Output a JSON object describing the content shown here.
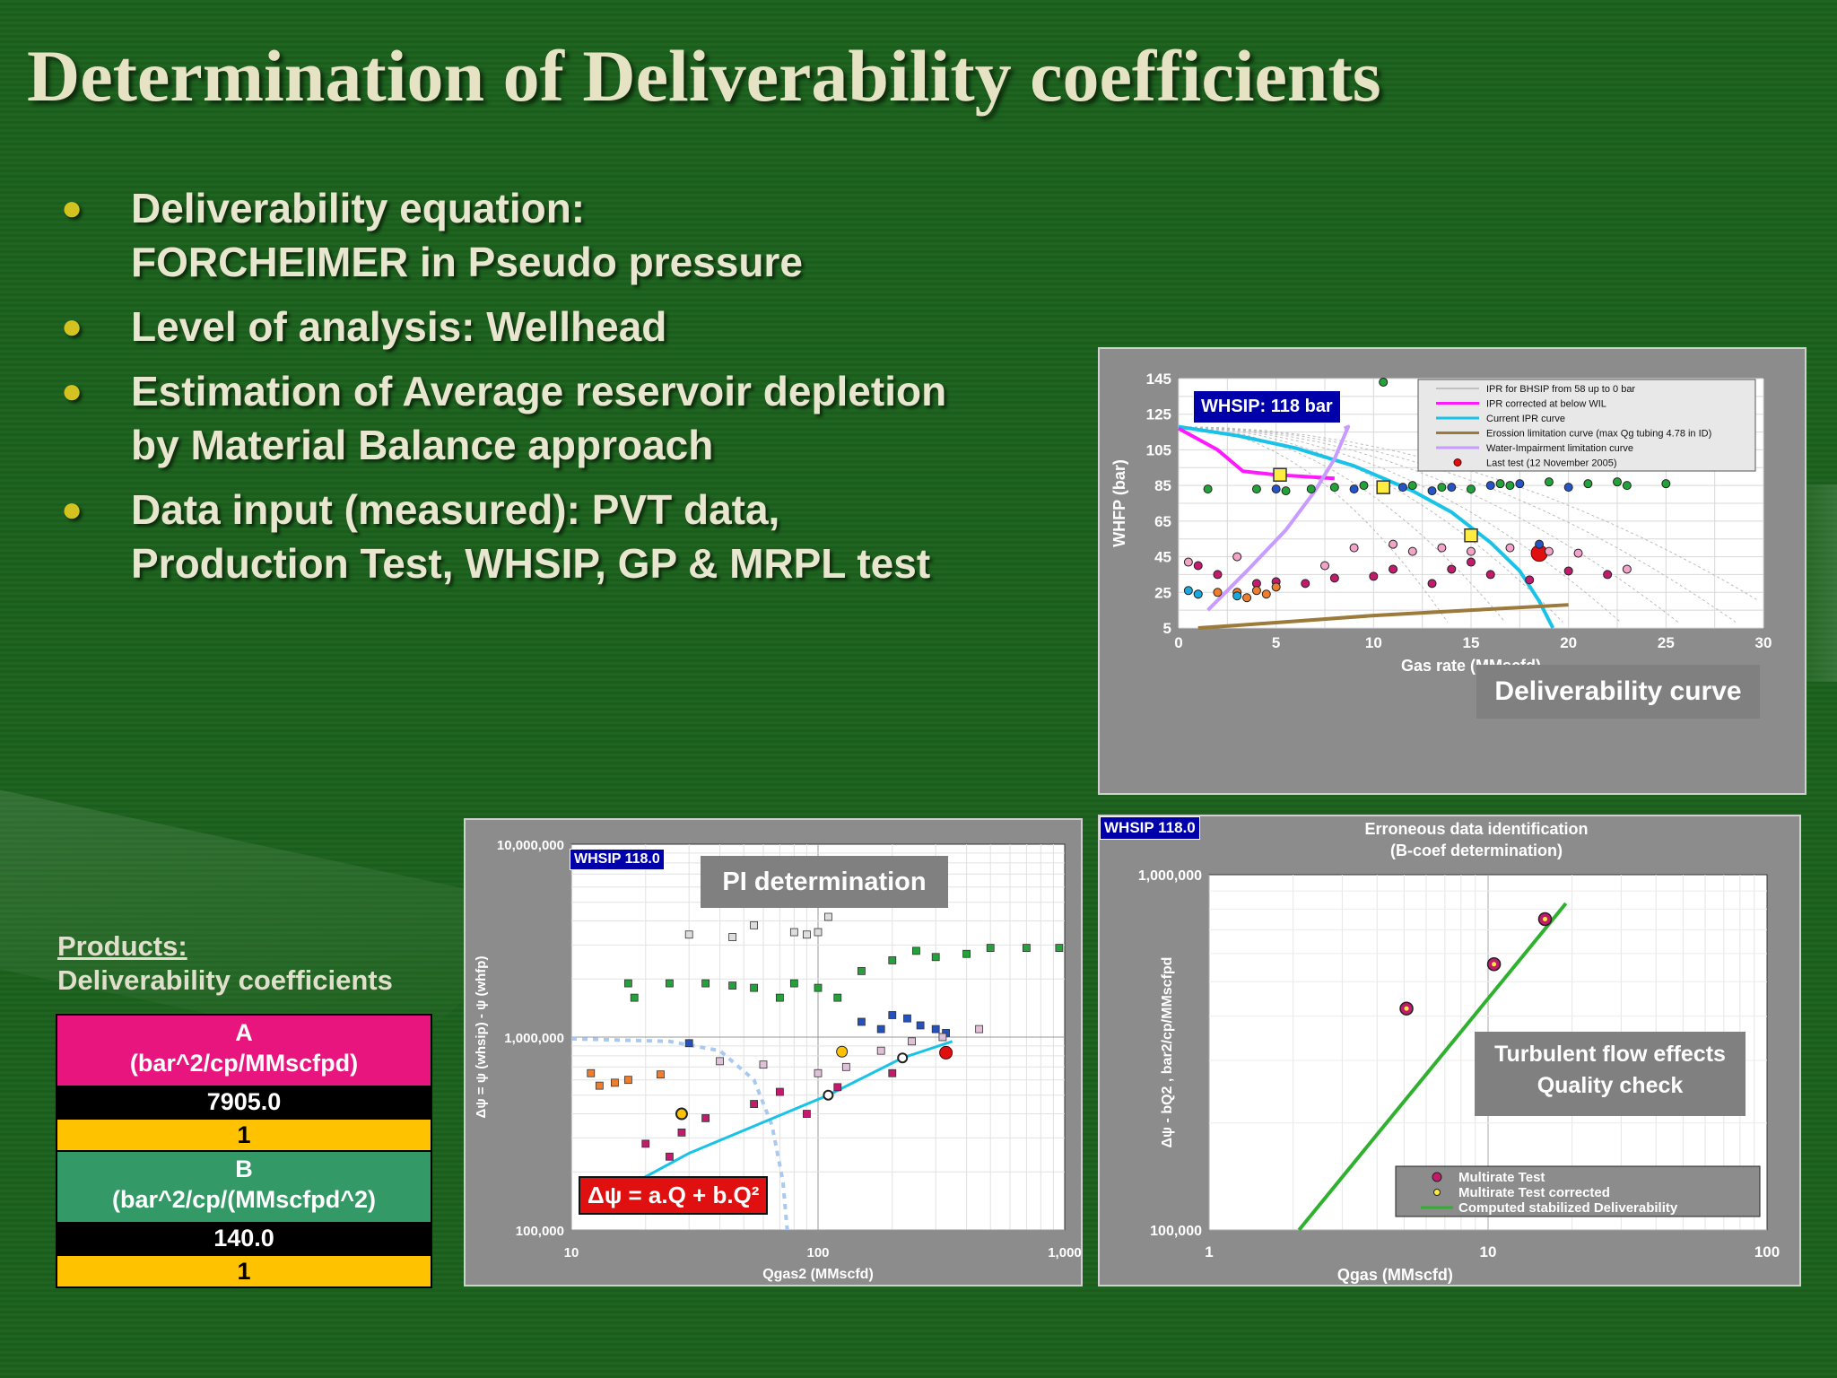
{
  "title": "Determination of Deliverability coefficients",
  "bullets": [
    "Deliverability equation:\nFORCHEIMER in Pseudo pressure",
    "Level of analysis: Wellhead",
    "Estimation of Average reservoir depletion\nby Material Balance approach",
    "Data input (measured): PVT data,\nProduction Test, WHSIP, GP & MRPL test"
  ],
  "products": {
    "heading": "Products:",
    "subheading": "Deliverability coefficients"
  },
  "coefficients": {
    "a_label": "A",
    "a_unit": "(bar^2/cp/MMscfpd)",
    "a_value": "7905.0",
    "a_flag": "1",
    "b_label": "B",
    "b_unit": "(bar^2/cp/(MMscfpd^2)",
    "b_value": "140.0",
    "b_flag": "1"
  },
  "colors": {
    "background": "#1f6420",
    "a_row": "#e8157f",
    "b_row": "#339966",
    "flag_row": "#ffc200",
    "ipr_current": "#19c3e8",
    "ipr_corrected": "#ff19ff",
    "erosion": "#9b7a3a",
    "water": "#c79bff",
    "last_test": "#e01010"
  },
  "chart_data": [
    {
      "type": "scatter",
      "caption": "Deliverability curve",
      "badge": "WHSIP: 118 bar",
      "xlabel": "Gas rate (MMscfd)",
      "ylabel": "WHFP (bar)",
      "xlim": [
        0,
        30
      ],
      "ylim": [
        5,
        145
      ],
      "xticks": [
        "0",
        "5",
        "10",
        "15",
        "20",
        "25",
        "30"
      ],
      "yticks": [
        "5",
        "25",
        "45",
        "65",
        "85",
        "105",
        "125",
        "145"
      ],
      "grid": true,
      "legend_position": "top-right",
      "legend": [
        "IPR for BHSIP from 58 up to 0 bar",
        "IPR corrected at below WIL",
        "Current IPR curve",
        "Erossion limitation curve (max Qg tubing 4.78 in ID)",
        "Water-Impairment limitation curve",
        "Last test (12 November 2005)"
      ],
      "series": [
        {
          "name": "Current IPR curve",
          "x": [
            0,
            3,
            6,
            9,
            12,
            14,
            16,
            17.5,
            18.5,
            19.2
          ],
          "y": [
            118,
            113,
            106,
            96,
            82,
            70,
            53,
            37,
            20,
            5
          ]
        },
        {
          "name": "IPR corrected at below WIL",
          "x": [
            0,
            2,
            3.3,
            5,
            8
          ],
          "y": [
            117,
            105,
            93,
            91,
            89
          ]
        },
        {
          "name": "Water-Impairment limitation curve",
          "x": [
            1.5,
            3.5,
            5.5,
            7,
            8,
            8.7,
            8.5
          ],
          "y": [
            15,
            37,
            60,
            82,
            100,
            118,
            117
          ]
        },
        {
          "name": "Erossion limitation curve (max Qg tubing 4.78 in ID)",
          "x": [
            1,
            5,
            10,
            15,
            20
          ],
          "y": [
            5,
            8,
            12,
            15,
            18
          ]
        },
        {
          "name": "Last test (12 November 2005)",
          "x": [
            18.5
          ],
          "y": [
            47
          ]
        }
      ]
    },
    {
      "type": "scatter",
      "caption": "PI determination",
      "badge": "WHSIP 118.0",
      "equation": "Δψ = a.Q + b.Q²",
      "xlabel": "Qgas2 (MMscfd)",
      "ylabel": "Δψ = ψ (whsip) - ψ (whfp)",
      "x_scale": "log",
      "y_scale": "log",
      "xlim": [
        10,
        1000
      ],
      "ylim": [
        100000,
        10000000
      ],
      "xticks": [
        "10",
        "100",
        "1,000"
      ],
      "yticks": [
        "100,000",
        "1,000,000",
        "10,000,000"
      ],
      "grid": true,
      "series": [
        {
          "name": "fit",
          "x": [
            13,
            30,
            110,
            220,
            350
          ],
          "y": [
            140000,
            250000,
            500000,
            780000,
            950000
          ]
        }
      ]
    },
    {
      "type": "scatter",
      "title": "Erroneous data identification",
      "subtitle": "(B-coef determination)",
      "caption": "Turbulent flow effects\nQuality check",
      "badge": "WHSIP 118.0",
      "xlabel": "Qgas (MMscfd)",
      "ylabel": "Δψ - bQ2 , bar2/cp/MMscfpd",
      "x_scale": "log",
      "y_scale": "log",
      "xlim": [
        1,
        100
      ],
      "ylim": [
        100000,
        1000000
      ],
      "xticks": [
        "1",
        "10",
        "100"
      ],
      "yticks": [
        "100,000",
        "1,000,000"
      ],
      "grid": true,
      "legend_position": "bottom-right",
      "legend": [
        "Multirate Test",
        "Multirate Test corrected",
        "Computed stabilized Deliverability"
      ],
      "series": [
        {
          "name": "Multirate Test",
          "x": [
            5.1,
            10.5,
            16
          ],
          "y": [
            420000,
            560000,
            750000
          ]
        },
        {
          "name": "Computed stabilized Deliverability",
          "x": [
            2.1,
            19
          ],
          "y": [
            100000,
            830000
          ]
        }
      ]
    }
  ]
}
